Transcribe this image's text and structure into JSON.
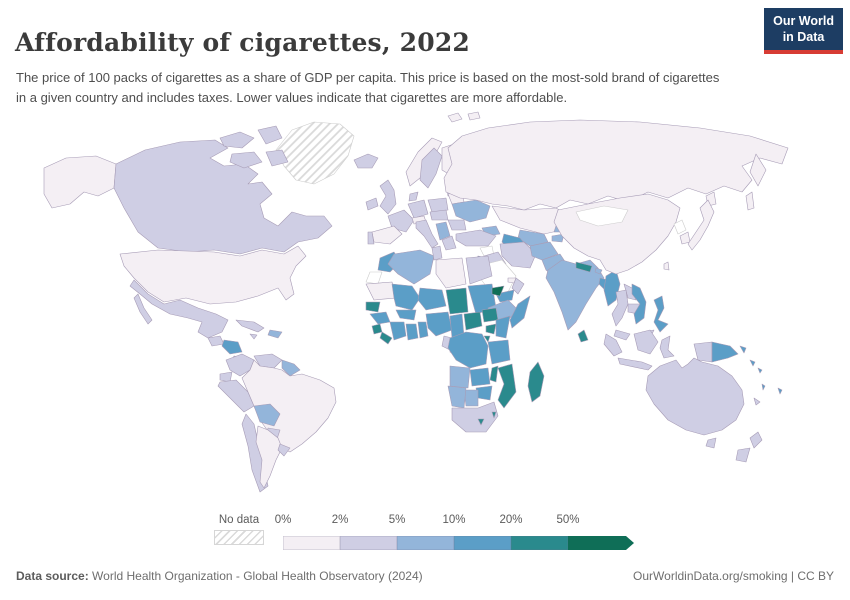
{
  "header": {
    "title": "Affordability of cigarettes, 2022",
    "subtitle": "The price of 100 packs of cigarettes as a share of GDP per capita. This price is based on the most-sold brand of cigarettes in a given country and includes taxes. Lower values indicate that cigarettes are more affordable."
  },
  "logo": {
    "line1": "Our World",
    "line2": "in Data",
    "bg_color": "#1d3d63",
    "accent_color": "#d73c34"
  },
  "legend": {
    "no_data_label": "No data",
    "tick_labels": [
      "0%",
      "2%",
      "5%",
      "10%",
      "20%",
      "50%"
    ],
    "bins": [
      {
        "range": "0-2",
        "color": "#f4eff4"
      },
      {
        "range": "2-5",
        "color": "#cfcee4"
      },
      {
        "range": "5-10",
        "color": "#93b5da"
      },
      {
        "range": "10-20",
        "color": "#5b9ec7"
      },
      {
        "range": "20-50",
        "color": "#2a8a8d"
      },
      {
        "range": "50+",
        "color": "#0f6e57"
      }
    ]
  },
  "footer": {
    "datasource_label": "Data source:",
    "datasource_text": " World Health Organization - Global Health Observatory (2024)",
    "link_text": "OurWorldinData.org/smoking | CC BY"
  },
  "chart_data": {
    "type": "choropleth_map",
    "title": "Affordability of cigarettes, 2022",
    "metric": "Price of 100 packs of cigarettes as a share of GDP per capita",
    "legend_position": "bottom",
    "bin_colors": {
      "0-2": "#f4eff4",
      "2-5": "#cfcee4",
      "5-10": "#93b5da",
      "10-20": "#5b9ec7",
      "20-50": "#2a8a8d",
      "50+": "#0f6e57"
    },
    "countries": {
      "greenland": "no-data",
      "alaska": "0-2",
      "canada": "2-5",
      "arctic-island-1": "2-5",
      "arctic-island-2": "2-5",
      "arctic-island-3": "2-5",
      "arctic-island-4": "2-5",
      "united-states": "0-2",
      "mexico": "2-5",
      "baja": "2-5",
      "guatemala": "2-5",
      "honduras-nicaragua": "10-20",
      "costa-rica-panama": "2-5",
      "cuba": "2-5",
      "jamaica": "2-5",
      "hispaniola": "5-10",
      "colombia": "2-5",
      "venezuela": "2-5",
      "guyana": "5-10",
      "ecuador": "2-5",
      "peru": "2-5",
      "brazil": "0-2",
      "bolivia": "5-10",
      "paraguay": "2-5",
      "chile": "2-5",
      "argentina": "0-2",
      "uruguay": "2-5",
      "iceland": "2-5",
      "ireland": "2-5",
      "united-kingdom": "2-5",
      "norway": "0-2",
      "sweden": "2-5",
      "finland": "0-2",
      "baltics": "2-5",
      "denmark": "2-5",
      "germany": "2-5",
      "france": "2-5",
      "spain": "0-2",
      "portugal": "2-5",
      "italy": "2-5",
      "switzerland-austria": "0-2",
      "poland": "2-5",
      "czechia-hungary": "2-5",
      "romania": "2-5",
      "balkans": "5-10",
      "greece": "2-5",
      "belarus": "0-2",
      "ukraine": "5-10",
      "russia": "0-2",
      "kamchatka": "0-2",
      "sakhalin": "0-2",
      "svalbard": "0-2",
      "franz-josef": "0-2",
      "kazakhstan": "0-2",
      "uzbekistan": "5-10",
      "turkmenistan": "10-20",
      "kyrgyzstan": "5-10",
      "tajikistan": "5-10",
      "caucasus": "5-10",
      "turkey": "2-5",
      "syria": "no-data-white",
      "iraq": "2-5",
      "iran": "2-5",
      "afghanistan": "5-10",
      "pakistan": "5-10",
      "saudi-arabia": "no-data-white",
      "jordan": "10-20",
      "yemen": "10-20",
      "oman": "2-5",
      "uae-qatar": "0-2",
      "india": "5-10",
      "nepal": "20-50",
      "bhutan": "5-10",
      "bangladesh": "10-20",
      "sri-lanka": "20-50",
      "myanmar": "10-20",
      "thailand": "2-5",
      "laos": "2-5",
      "cambodia": "2-5",
      "vietnam": "10-20",
      "malaysia": "2-5",
      "malay-borneo": "2-5",
      "china": "0-2",
      "mongolia": "no-data-white",
      "north-korea": "no-data-white",
      "south-korea": "0-2",
      "japan": "0-2",
      "hokkaido": "0-2",
      "taiwan": "0-2",
      "philippines": "10-20",
      "sumatra": "2-5",
      "java": "2-5",
      "borneo": "2-5",
      "sulawesi": "2-5",
      "west-papua": "2-5",
      "papua-new-guinea": "10-20",
      "new-britain": "10-20",
      "solomons-1": "10-20",
      "solomons-2": "10-20",
      "vanuatu": "10-20",
      "fiji": "10-20",
      "new-caledonia": "2-5",
      "australia": "2-5",
      "tasmania": "2-5",
      "nz-north": "2-5",
      "nz-south": "2-5",
      "morocco": "10-20",
      "western-sahara": "no-data-white",
      "algeria": "5-10",
      "tunisia": "2-5",
      "libya": "0-2",
      "egypt": "2-5",
      "mauritania": "0-2",
      "mali": "10-20",
      "niger": "10-20",
      "chad": "20-50",
      "sudan": "10-20",
      "eritrea": "50+",
      "ethiopia": "5-10",
      "somalia": "10-20",
      "senegal-gambia": "20-50",
      "guinea": "10-20",
      "sierra-leone": "20-50",
      "liberia": "20-50",
      "cote-divoire": "10-20",
      "ghana": "10-20",
      "togo-benin": "10-20",
      "burkina-faso": "10-20",
      "nigeria": "10-20",
      "cameroon": "10-20",
      "central-african-republic": "20-50",
      "south-sudan": "20-50",
      "gabon": "2-5",
      "congo": "10-20",
      "dr-congo": "10-20",
      "uganda": "20-50",
      "kenya": "10-20",
      "rwanda-burundi": "20-50",
      "tanzania": "10-20",
      "angola": "5-10",
      "zambia": "10-20",
      "malawi": "20-50",
      "mozambique": "20-50",
      "zimbabwe": "10-20",
      "botswana": "5-10",
      "namibia": "5-10",
      "south-africa": "2-5",
      "lesotho": "20-50",
      "eswatini": "20-50",
      "madagascar": "20-50"
    }
  }
}
